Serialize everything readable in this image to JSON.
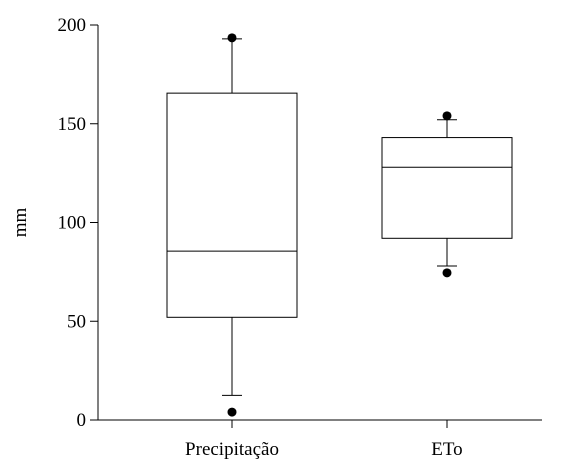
{
  "chart_data": {
    "type": "box",
    "title": "",
    "xlabel": "",
    "ylabel": "mm",
    "ylim": [
      0,
      200
    ],
    "yticks": [
      0,
      50,
      100,
      150,
      200
    ],
    "grid": false,
    "categories": [
      "Precipitação",
      "ETo"
    ],
    "boxes": [
      {
        "category": "Precipitação",
        "whisker_low": 12.5,
        "q1": 52,
        "median": 85.5,
        "q3": 165.5,
        "whisker_high": 193,
        "outliers": [
          4,
          193.5
        ]
      },
      {
        "category": "ETo",
        "whisker_low": 78,
        "q1": 92,
        "median": 128,
        "q3": 143,
        "whisker_high": 152,
        "outliers": [
          74.5,
          154
        ]
      }
    ]
  }
}
